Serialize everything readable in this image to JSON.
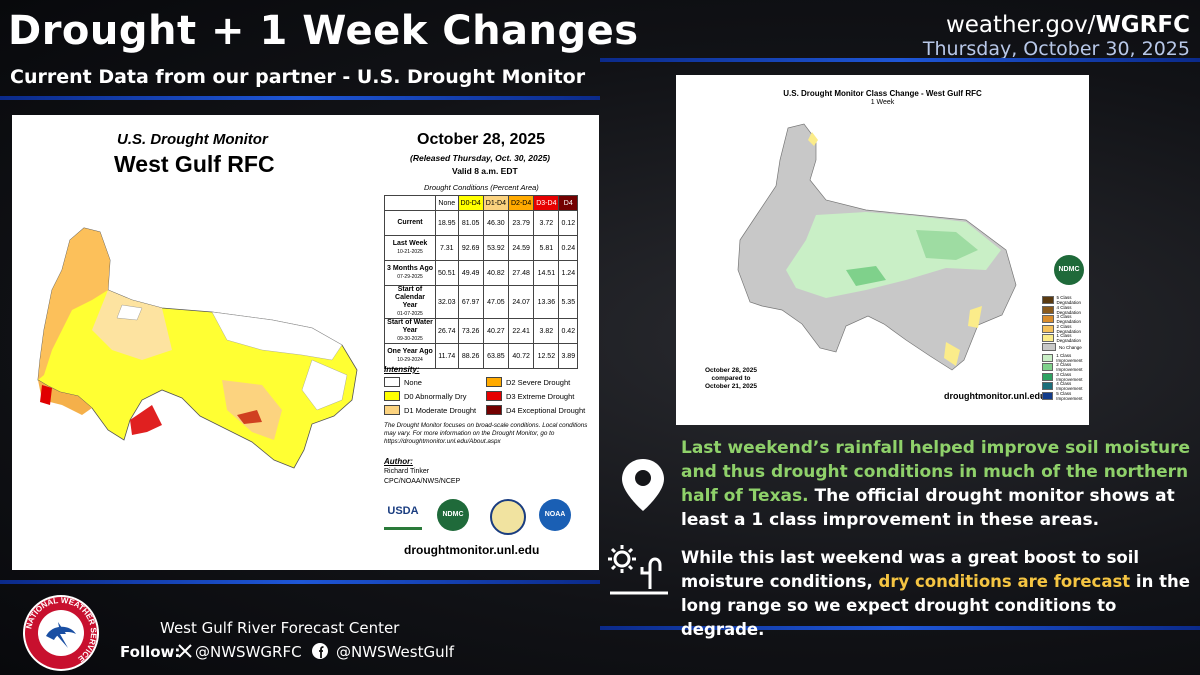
{
  "header": {
    "title": "Drought + 1 Week Changes",
    "subtitle": "Current Data from our partner - U.S.  Drought Monitor",
    "site_prefix": "weather.gov/",
    "site_bold": "WGRFC",
    "date": "Thursday, October 30, 2025"
  },
  "left_map": {
    "heading": "U.S. Drought Monitor",
    "region": "West Gulf RFC",
    "map_date": "October 28, 2025",
    "released": "(Released Thursday, Oct. 30, 2025)",
    "valid": "Valid 8 a.m. EDT",
    "table_caption": "Drought Conditions (Percent Area)",
    "table": {
      "columns": [
        "None",
        "D0-D4",
        "D1-D4",
        "D2-D4",
        "D3-D4",
        "D4"
      ],
      "rows": [
        {
          "label": "Current",
          "cells": [
            "18.95",
            "81.05",
            "46.30",
            "23.79",
            "3.72",
            "0.12"
          ]
        },
        {
          "label": "Last Week",
          "date": "10-21-2025",
          "cells": [
            "7.31",
            "92.69",
            "53.92",
            "24.59",
            "5.81",
            "0.24"
          ]
        },
        {
          "label": "3 Months Ago",
          "date": "07-29-2025",
          "cells": [
            "50.51",
            "49.49",
            "40.82",
            "27.48",
            "14.51",
            "1.24"
          ]
        },
        {
          "label": "Start of Calendar Year",
          "date": "01-07-2025",
          "cells": [
            "32.03",
            "67.97",
            "47.05",
            "24.07",
            "13.36",
            "5.35"
          ]
        },
        {
          "label": "Start of Water Year",
          "date": "09-30-2025",
          "cells": [
            "26.74",
            "73.26",
            "40.27",
            "22.41",
            "3.82",
            "0.42"
          ]
        },
        {
          "label": "One Year Ago",
          "date": "10-29-2024",
          "cells": [
            "11.74",
            "88.26",
            "63.85",
            "40.72",
            "12.52",
            "3.89"
          ]
        }
      ]
    },
    "intensity_title": "Intensity:",
    "intensity": [
      {
        "label": "None",
        "color": "#ffffff"
      },
      {
        "label": "D0 Abnormally Dry",
        "color": "#ffff00"
      },
      {
        "label": "D1 Moderate Drought",
        "color": "#fcd37f"
      },
      {
        "label": "D2 Severe Drought",
        "color": "#ffaa00"
      },
      {
        "label": "D3 Extreme Drought",
        "color": "#e60000"
      },
      {
        "label": "D4 Exceptional Drought",
        "color": "#730000"
      }
    ],
    "note": "The Drought Monitor focuses on broad-scale conditions. Local conditions may vary. For more information on the Drought Monitor, go to https://droughtmonitor.unl.edu/About.aspx",
    "author_title": "Author:",
    "author": "Richard Tinker",
    "author_org": "CPC/NOAA/NWS/NCEP",
    "logos": [
      "USDA",
      "NDMC",
      "NOAA"
    ],
    "url": "droughtmonitor.unl.edu"
  },
  "right_map": {
    "title": "U.S. Drought Monitor Class Change - West Gulf RFC",
    "period": "1 Week",
    "compare_date": "October 28, 2025",
    "compare_text": "compared to",
    "compare_prior": "October 21, 2025",
    "logo": "NDMC",
    "legend": [
      {
        "label": "5 Class Degradation",
        "color": "#5a3a10"
      },
      {
        "label": "4 Class Degradation",
        "color": "#8a5a1c"
      },
      {
        "label": "3 Class Degradation",
        "color": "#d98c2b"
      },
      {
        "label": "2 Class Degradation",
        "color": "#f4c05a"
      },
      {
        "label": "1 Class Degradation",
        "color": "#fbec8a"
      },
      {
        "label": "No Change",
        "color": "#c8c8c8"
      },
      {
        "label": "1 Class Improvement",
        "color": "#c9efc6"
      },
      {
        "label": "2 Class Improvement",
        "color": "#7fd18b"
      },
      {
        "label": "3 Class Improvement",
        "color": "#2ea262"
      },
      {
        "label": "4 Class Improvement",
        "color": "#1b6e7a"
      },
      {
        "label": "5 Class Improvement",
        "color": "#123c8a"
      }
    ],
    "url": "droughtmonitor.unl.edu"
  },
  "summary": {
    "p1_highlight": "Last weekend’s rainfall helped improve soil moisture and thus drought conditions in much of the northern half of Texas.",
    "p1_rest": " The official drought monitor shows at least a 1 class improvement in these areas.",
    "p2_start": "While this last weekend was a great boost to soil moisture conditions, ",
    "p2_highlight": "dry conditions are forecast",
    "p2_end": " in the long range so we expect drought conditions to degrade."
  },
  "footer": {
    "logo_text": "NATIONAL WEATHER SERVICE",
    "office": "West Gulf River Forecast Center",
    "follow": "Follow:",
    "x_handle": "@NWSWGRFC",
    "fb_handle": "@NWSWestGulf"
  }
}
